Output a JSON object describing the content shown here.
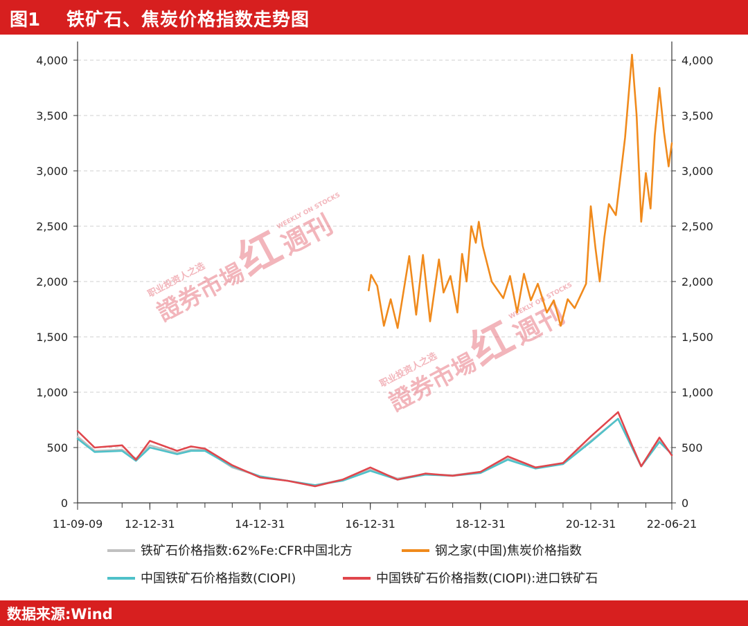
{
  "header": {
    "fig_no": "图1",
    "title": "铁矿石、焦炭价格指数走势图"
  },
  "footer": {
    "source": "数据来源:Wind"
  },
  "watermark": {
    "main": "證券市場",
    "glyph": "红",
    "sub": "週刊",
    "tagline": "职业投资人之选",
    "en": "WEEKLY ON STOCKS"
  },
  "colors": {
    "header_bg": "#d71f1f",
    "iron_cfr": "#c0c0c0",
    "coke": "#f08a1c",
    "ciopi": "#4fc1c9",
    "ciopi_import": "#e0464c",
    "grid": "#cfcfcf"
  },
  "chart_data": {
    "type": "line",
    "x_ticks": [
      "11-09-09",
      "12-12-31",
      "14-12-31",
      "16-12-31",
      "18-12-31",
      "20-12-31",
      "22-06-21"
    ],
    "y_left": {
      "min": 0,
      "max": 4000,
      "ticks": [
        "0",
        "500",
        "1,000",
        "1,500",
        "2,000",
        "2,500",
        "3,000",
        "3,500",
        "4,000"
      ]
    },
    "y_right": {
      "min": 0,
      "max": 4000,
      "ticks": [
        "0",
        "500",
        "1,000",
        "1,500",
        "2,000",
        "2,500",
        "3,000",
        "3,500",
        "4,000"
      ]
    },
    "grid": "horizontal-dashed",
    "legend_position": "bottom",
    "series": [
      {
        "name": "铁矿石价格指数:62%Fe:CFR中国北方",
        "color_key": "iron_cfr",
        "points": [
          [
            "2011-09-09",
            600
          ],
          [
            "2011-12-31",
            470
          ],
          [
            "2012-06-30",
            480
          ],
          [
            "2012-09-30",
            400
          ],
          [
            "2012-12-31",
            520
          ],
          [
            "2013-06-30",
            450
          ],
          [
            "2013-09-30",
            480
          ],
          [
            "2013-12-31",
            480
          ],
          [
            "2014-06-30",
            320
          ],
          [
            "2014-12-31",
            240
          ],
          [
            "2015-06-30",
            200
          ],
          [
            "2015-12-31",
            160
          ],
          [
            "2016-06-30",
            210
          ],
          [
            "2016-12-31",
            300
          ],
          [
            "2017-06-30",
            220
          ],
          [
            "2017-12-31",
            260
          ],
          [
            "2018-06-30",
            250
          ],
          [
            "2018-12-31",
            280
          ],
          [
            "2019-06-30",
            400
          ],
          [
            "2019-12-31",
            320
          ],
          [
            "2020-06-30",
            360
          ],
          [
            "2020-12-31",
            560
          ],
          [
            "2021-06-30",
            760
          ],
          [
            "2021-09-30",
            500
          ],
          [
            "2021-11-30",
            330
          ],
          [
            "2022-03-31",
            560
          ],
          [
            "2022-06-21",
            440
          ]
        ]
      },
      {
        "name": "钢之家(中国)焦炭价格指数",
        "color_key": "coke",
        "points": [
          [
            "2016-12-20",
            1920
          ],
          [
            "2017-01-05",
            2060
          ],
          [
            "2017-02-15",
            1960
          ],
          [
            "2017-03-31",
            1600
          ],
          [
            "2017-05-15",
            1840
          ],
          [
            "2017-06-30",
            1580
          ],
          [
            "2017-09-15",
            2230
          ],
          [
            "2017-10-31",
            1700
          ],
          [
            "2017-12-15",
            2240
          ],
          [
            "2018-01-31",
            1640
          ],
          [
            "2018-03-31",
            2200
          ],
          [
            "2018-04-30",
            1900
          ],
          [
            "2018-06-15",
            2050
          ],
          [
            "2018-07-31",
            1720
          ],
          [
            "2018-08-31",
            2250
          ],
          [
            "2018-09-30",
            2000
          ],
          [
            "2018-10-31",
            2500
          ],
          [
            "2018-11-30",
            2350
          ],
          [
            "2018-12-20",
            2540
          ],
          [
            "2019-01-15",
            2320
          ],
          [
            "2019-03-15",
            2000
          ],
          [
            "2019-05-31",
            1850
          ],
          [
            "2019-07-15",
            2050
          ],
          [
            "2019-08-31",
            1720
          ],
          [
            "2019-10-15",
            2070
          ],
          [
            "2019-11-30",
            1830
          ],
          [
            "2020-01-15",
            1980
          ],
          [
            "2020-03-15",
            1720
          ],
          [
            "2020-04-30",
            1830
          ],
          [
            "2020-06-15",
            1600
          ],
          [
            "2020-07-31",
            1840
          ],
          [
            "2020-09-15",
            1760
          ],
          [
            "2020-11-30",
            1980
          ],
          [
            "2020-12-31",
            2680
          ],
          [
            "2021-01-31",
            2300
          ],
          [
            "2021-02-28",
            2000
          ],
          [
            "2021-03-31",
            2400
          ],
          [
            "2021-04-30",
            2700
          ],
          [
            "2021-06-15",
            2600
          ],
          [
            "2021-08-15",
            3300
          ],
          [
            "2021-09-30",
            4050
          ],
          [
            "2021-10-31",
            3500
          ],
          [
            "2021-11-30",
            2540
          ],
          [
            "2021-12-31",
            2980
          ],
          [
            "2022-01-31",
            2660
          ],
          [
            "2022-02-28",
            3320
          ],
          [
            "2022-03-31",
            3750
          ],
          [
            "2022-04-30",
            3350
          ],
          [
            "2022-05-31",
            3040
          ],
          [
            "2022-06-21",
            3250
          ]
        ]
      },
      {
        "name": "中国铁矿石价格指数(CIOPI)",
        "color_key": "ciopi",
        "points": [
          [
            "2011-09-09",
            580
          ],
          [
            "2011-12-31",
            460
          ],
          [
            "2012-06-30",
            470
          ],
          [
            "2012-09-30",
            380
          ],
          [
            "2012-12-31",
            500
          ],
          [
            "2013-06-30",
            440
          ],
          [
            "2013-09-30",
            470
          ],
          [
            "2013-12-31",
            470
          ],
          [
            "2014-06-30",
            330
          ],
          [
            "2014-12-31",
            240
          ],
          [
            "2015-06-30",
            200
          ],
          [
            "2015-12-31",
            160
          ],
          [
            "2016-06-30",
            200
          ],
          [
            "2016-12-31",
            290
          ],
          [
            "2017-06-30",
            210
          ],
          [
            "2017-12-31",
            255
          ],
          [
            "2018-06-30",
            245
          ],
          [
            "2018-12-31",
            270
          ],
          [
            "2019-06-30",
            390
          ],
          [
            "2019-12-31",
            310
          ],
          [
            "2020-06-30",
            350
          ],
          [
            "2020-12-31",
            550
          ],
          [
            "2021-06-30",
            760
          ],
          [
            "2021-09-30",
            500
          ],
          [
            "2021-11-30",
            330
          ],
          [
            "2022-03-31",
            550
          ],
          [
            "2022-06-21",
            440
          ]
        ]
      },
      {
        "name": "中国铁矿石价格指数(CIOPI):进口铁矿石",
        "color_key": "ciopi_import",
        "points": [
          [
            "2011-09-09",
            650
          ],
          [
            "2011-12-31",
            500
          ],
          [
            "2012-06-30",
            520
          ],
          [
            "2012-09-30",
            390
          ],
          [
            "2012-12-31",
            560
          ],
          [
            "2013-06-30",
            470
          ],
          [
            "2013-09-30",
            510
          ],
          [
            "2013-12-31",
            490
          ],
          [
            "2014-06-30",
            340
          ],
          [
            "2014-12-31",
            230
          ],
          [
            "2015-06-30",
            200
          ],
          [
            "2015-12-31",
            150
          ],
          [
            "2016-06-30",
            210
          ],
          [
            "2016-12-31",
            320
          ],
          [
            "2017-06-30",
            210
          ],
          [
            "2017-12-31",
            265
          ],
          [
            "2018-06-30",
            245
          ],
          [
            "2018-12-31",
            280
          ],
          [
            "2019-06-30",
            420
          ],
          [
            "2019-12-31",
            320
          ],
          [
            "2020-06-30",
            360
          ],
          [
            "2020-12-31",
            600
          ],
          [
            "2021-06-30",
            820
          ],
          [
            "2021-09-30",
            520
          ],
          [
            "2021-11-30",
            330
          ],
          [
            "2022-03-31",
            590
          ],
          [
            "2022-06-21",
            430
          ]
        ]
      }
    ]
  }
}
